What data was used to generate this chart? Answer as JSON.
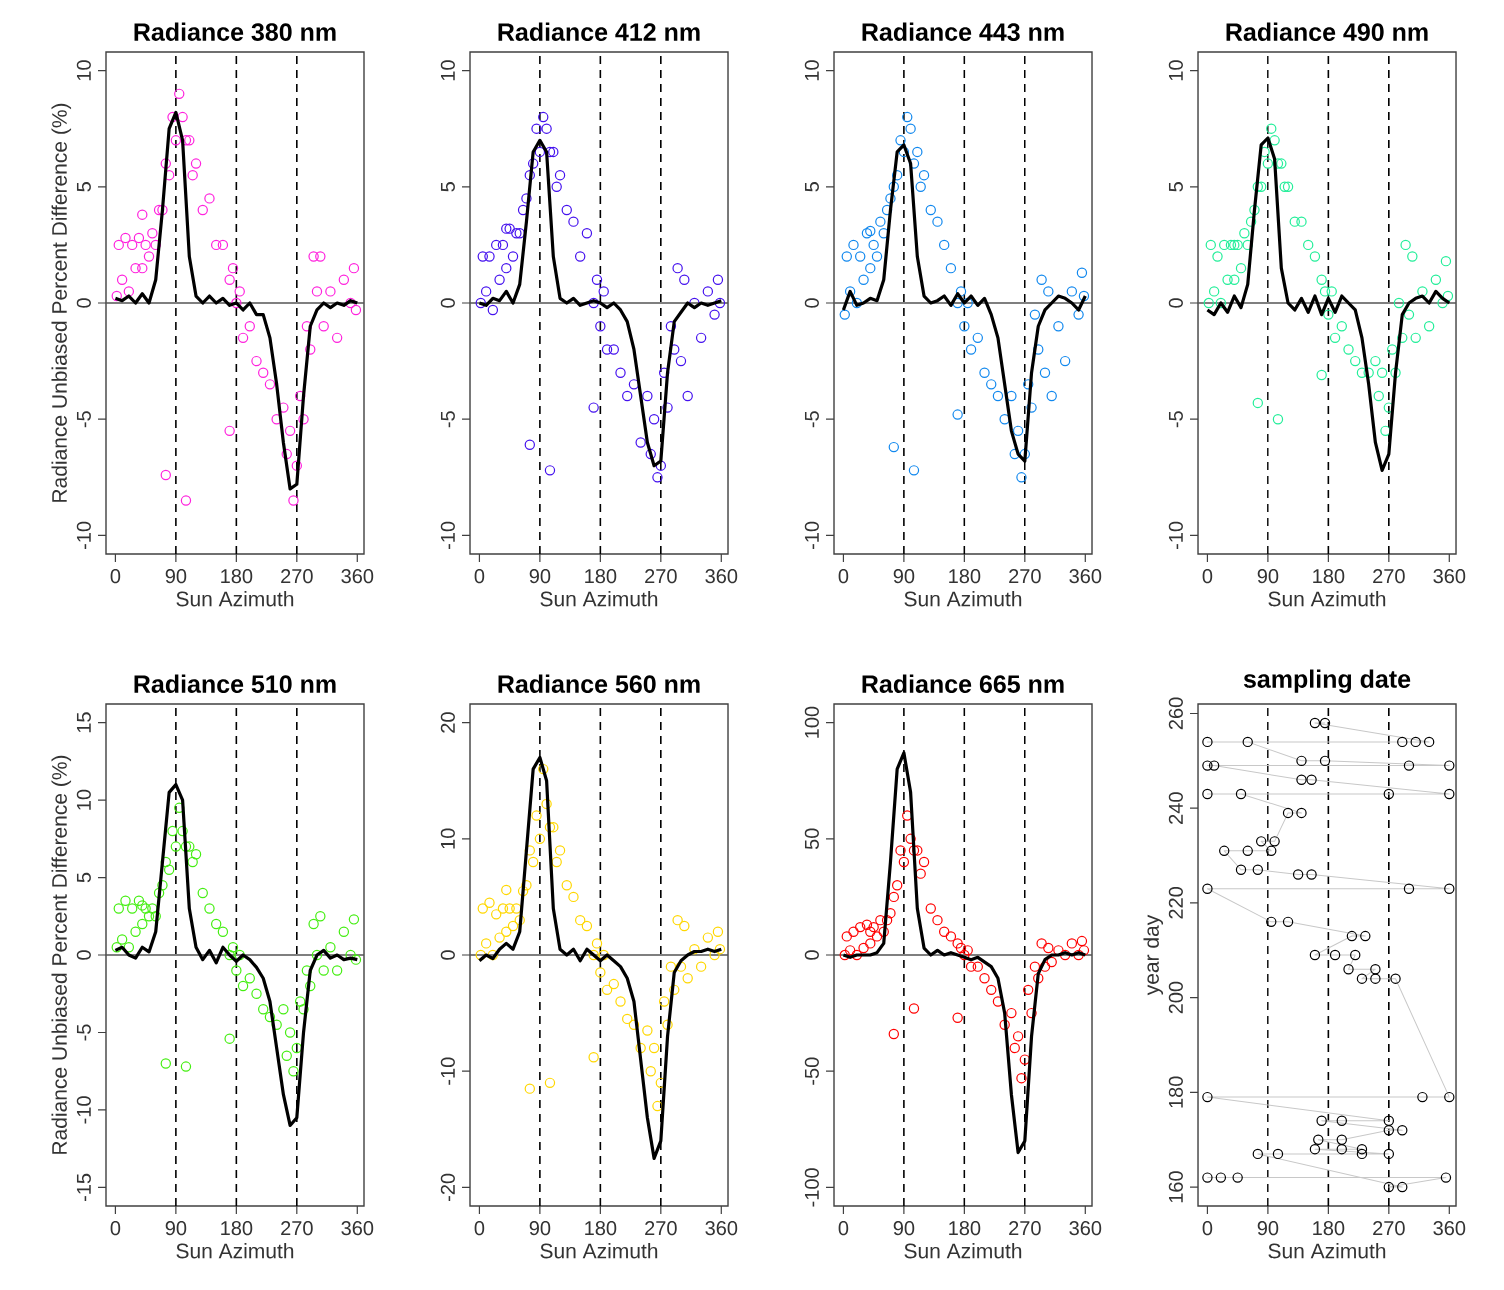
{
  "chart_data": [
    {
      "type": "scatter",
      "title": "Radiance 380 nm",
      "xlabel": "Sun Azimuth",
      "ylabel": "Radiance Unbiased Percent Difference (%)",
      "xlim": [
        -14,
        370
      ],
      "ylim": [
        -10.8,
        10.8
      ],
      "xticks": [
        0,
        90,
        180,
        270,
        360
      ],
      "yticks": [
        -10,
        -5,
        0,
        5,
        10
      ],
      "ref_lines": [
        {
          "axis": "x",
          "value": 90,
          "line_style": "dashed",
          "color": "#000000"
        },
        {
          "axis": "x",
          "value": 180,
          "line_style": "dashed",
          "color": "#000000"
        },
        {
          "axis": "x",
          "value": 270,
          "line_style": "dashed",
          "color": "#000000"
        },
        {
          "axis": "y",
          "value": 0,
          "line_style": "solid",
          "color": "#555555"
        }
      ],
      "series": [
        {
          "type": "scatter",
          "marker": "circle",
          "color": "#ff22dd",
          "x": [
            2,
            5,
            10,
            15,
            20,
            25,
            30,
            35,
            40,
            45,
            50,
            55,
            60,
            65,
            70,
            75,
            80,
            85,
            90,
            95,
            100,
            105,
            110,
            115,
            120,
            130,
            140,
            150,
            160,
            170,
            175,
            180,
            185,
            190,
            200,
            210,
            220,
            230,
            240,
            250,
            255,
            260,
            265,
            270,
            275,
            280,
            285,
            290,
            295,
            300,
            305,
            310,
            320,
            330,
            340,
            350,
            355,
            358,
            75,
            105,
            170,
            40
          ],
          "values": [
            0.3,
            2.5,
            1,
            2.8,
            0.5,
            2.5,
            1.5,
            2.8,
            1.5,
            2.5,
            2,
            3,
            2.5,
            4,
            4,
            6,
            5.5,
            8,
            7,
            9,
            8,
            7,
            7,
            5.5,
            6,
            4,
            4.5,
            2.5,
            2.5,
            1,
            1.5,
            0,
            0.5,
            -1.5,
            -1,
            -2.5,
            -3,
            -3.5,
            -5,
            -4.5,
            -6.5,
            -5.5,
            -8.5,
            -7,
            -4,
            -5,
            -1,
            -2,
            2,
            0.5,
            2,
            -1,
            0.5,
            -1.5,
            1,
            0,
            1.5,
            -0.3,
            -7.4,
            -8.5,
            -5.5,
            3.8
          ]
        },
        {
          "type": "line",
          "marker": "none",
          "color": "#000000",
          "x": [
            0,
            10,
            20,
            30,
            40,
            50,
            60,
            70,
            80,
            90,
            100,
            110,
            120,
            130,
            140,
            150,
            160,
            170,
            180,
            190,
            200,
            210,
            220,
            230,
            240,
            250,
            260,
            270,
            280,
            290,
            300,
            310,
            320,
            330,
            340,
            350,
            360
          ],
          "values": [
            0.2,
            0.1,
            0.3,
            0,
            0.4,
            0,
            1,
            4,
            7.5,
            8.2,
            7,
            2,
            0.3,
            0,
            0.3,
            0,
            0.2,
            -0.1,
            0,
            -0.3,
            0,
            -0.5,
            -0.5,
            -1.5,
            -3.5,
            -6,
            -8,
            -7.8,
            -4,
            -1,
            -0.3,
            0,
            -0.2,
            0,
            -0.1,
            0.1,
            0
          ]
        }
      ]
    },
    {
      "type": "scatter",
      "title": "Radiance 412 nm",
      "xlabel": "Sun Azimuth",
      "xlim": [
        -14,
        370
      ],
      "ylim": [
        -10.8,
        10.8
      ],
      "xticks": [
        0,
        90,
        180,
        270,
        360
      ],
      "yticks": [
        -10,
        -5,
        0,
        5,
        10
      ],
      "ref_lines": [
        {
          "axis": "x",
          "value": 90,
          "line_style": "dashed",
          "color": "#000000"
        },
        {
          "axis": "x",
          "value": 180,
          "line_style": "dashed",
          "color": "#000000"
        },
        {
          "axis": "x",
          "value": 270,
          "line_style": "dashed",
          "color": "#000000"
        },
        {
          "axis": "y",
          "value": 0,
          "line_style": "solid",
          "color": "#555555"
        }
      ],
      "series": [
        {
          "type": "scatter",
          "marker": "circle",
          "color": "#4411ee",
          "x": [
            2,
            5,
            10,
            15,
            20,
            25,
            30,
            35,
            40,
            45,
            50,
            55,
            60,
            65,
            70,
            75,
            80,
            85,
            90,
            95,
            100,
            105,
            110,
            115,
            120,
            130,
            140,
            150,
            160,
            170,
            175,
            180,
            185,
            190,
            200,
            210,
            220,
            230,
            240,
            250,
            255,
            260,
            265,
            270,
            275,
            280,
            285,
            290,
            295,
            300,
            305,
            310,
            320,
            330,
            340,
            350,
            355,
            358,
            75,
            105,
            170,
            40
          ],
          "values": [
            0,
            2,
            0.5,
            2,
            -0.3,
            2.5,
            1,
            2.5,
            1.5,
            3.2,
            2,
            3,
            3,
            4,
            4.5,
            5.5,
            6,
            7.5,
            6.5,
            8,
            7.5,
            6.5,
            6.5,
            5,
            5.5,
            4,
            3.5,
            2,
            3,
            0,
            1,
            -1,
            0.5,
            -2,
            -2,
            -3,
            -4,
            -3.5,
            -6,
            -4,
            -6.5,
            -5,
            -7.5,
            -7,
            -3,
            -4.5,
            -1,
            -2,
            1.5,
            -2.5,
            1,
            -4,
            0,
            -1.5,
            0.5,
            -0.5,
            1,
            0,
            -6.1,
            -7.2,
            -4.5,
            3.2
          ]
        },
        {
          "type": "line",
          "marker": "none",
          "color": "#000000",
          "x": [
            0,
            10,
            20,
            30,
            40,
            50,
            60,
            70,
            80,
            90,
            100,
            110,
            120,
            130,
            140,
            150,
            160,
            170,
            180,
            190,
            200,
            210,
            220,
            230,
            240,
            250,
            260,
            270,
            280,
            290,
            300,
            310,
            320,
            330,
            340,
            350,
            360
          ],
          "values": [
            0,
            -0.1,
            0.2,
            0.1,
            0.5,
            0,
            0.8,
            3.5,
            6.5,
            7,
            6.5,
            2,
            0.2,
            0,
            0.2,
            -0.1,
            0,
            0.1,
            0,
            -0.2,
            0,
            -0.3,
            -0.8,
            -2,
            -4,
            -6,
            -7,
            -6.8,
            -3,
            -0.8,
            -0.4,
            0,
            -0.2,
            0,
            -0.1,
            0,
            0.1
          ]
        }
      ]
    },
    {
      "type": "scatter",
      "title": "Radiance 443 nm",
      "xlabel": "Sun Azimuth",
      "xlim": [
        -14,
        370
      ],
      "ylim": [
        -10.8,
        10.8
      ],
      "xticks": [
        0,
        90,
        180,
        270,
        360
      ],
      "yticks": [
        -10,
        -5,
        0,
        5,
        10
      ],
      "ref_lines": [
        {
          "axis": "x",
          "value": 90,
          "line_style": "dashed",
          "color": "#000000"
        },
        {
          "axis": "x",
          "value": 180,
          "line_style": "dashed",
          "color": "#000000"
        },
        {
          "axis": "x",
          "value": 270,
          "line_style": "dashed",
          "color": "#000000"
        },
        {
          "axis": "y",
          "value": 0,
          "line_style": "solid",
          "color": "#555555"
        }
      ],
      "series": [
        {
          "type": "scatter",
          "marker": "circle",
          "color": "#1188ee",
          "x": [
            2,
            5,
            10,
            15,
            20,
            25,
            30,
            35,
            40,
            45,
            50,
            55,
            60,
            65,
            70,
            75,
            80,
            85,
            90,
            95,
            100,
            105,
            110,
            115,
            120,
            130,
            140,
            150,
            160,
            170,
            175,
            180,
            185,
            190,
            200,
            210,
            220,
            230,
            240,
            250,
            255,
            260,
            265,
            270,
            275,
            280,
            285,
            290,
            295,
            300,
            305,
            310,
            320,
            330,
            340,
            350,
            355,
            358,
            75,
            105,
            170,
            40
          ],
          "values": [
            -0.5,
            2,
            0.5,
            2.5,
            0,
            2,
            1,
            3,
            1.5,
            2.5,
            2,
            3.5,
            3,
            4,
            4.5,
            5,
            5.5,
            7,
            6.5,
            8,
            7.5,
            6,
            6.5,
            5,
            5.5,
            4,
            3.5,
            2.5,
            1.5,
            0,
            0.5,
            -1,
            0,
            -2,
            -1.5,
            -3,
            -3.5,
            -4,
            -5,
            -4,
            -6.5,
            -5.5,
            -7.5,
            -6.5,
            -3.5,
            -4.5,
            -0.5,
            -2,
            1,
            -3,
            0.5,
            -4,
            -1,
            -2.5,
            0.5,
            -0.5,
            1.3,
            0.3,
            -6.2,
            -7.2,
            -4.8,
            3.1
          ]
        },
        {
          "type": "line",
          "marker": "none",
          "color": "#000000",
          "x": [
            0,
            10,
            20,
            30,
            40,
            50,
            60,
            70,
            80,
            90,
            100,
            110,
            120,
            130,
            140,
            150,
            160,
            170,
            180,
            190,
            200,
            210,
            220,
            230,
            240,
            250,
            260,
            270,
            280,
            290,
            300,
            310,
            320,
            330,
            340,
            350,
            360
          ],
          "values": [
            -0.3,
            0.5,
            -0.1,
            0,
            0.2,
            0.1,
            1,
            4,
            6.5,
            6.8,
            6,
            2,
            0.3,
            0,
            0.1,
            0.3,
            -0.1,
            0.4,
            0,
            0.3,
            -0.1,
            0.2,
            -0.5,
            -1.5,
            -3.5,
            -5.5,
            -6.5,
            -6.8,
            -3,
            -1,
            -0.3,
            0,
            0.3,
            0.2,
            0,
            -0.3,
            0.3
          ]
        }
      ]
    },
    {
      "type": "scatter",
      "title": "Radiance 490 nm",
      "xlabel": "Sun Azimuth",
      "xlim": [
        -14,
        370
      ],
      "ylim": [
        -10.8,
        10.8
      ],
      "xticks": [
        0,
        90,
        180,
        270,
        360
      ],
      "yticks": [
        -10,
        -5,
        0,
        5,
        10
      ],
      "ref_lines": [
        {
          "axis": "x",
          "value": 90,
          "line_style": "dashed",
          "color": "#000000"
        },
        {
          "axis": "x",
          "value": 180,
          "line_style": "dashed",
          "color": "#000000"
        },
        {
          "axis": "x",
          "value": 270,
          "line_style": "dashed",
          "color": "#000000"
        },
        {
          "axis": "y",
          "value": 0,
          "line_style": "solid",
          "color": "#555555"
        }
      ],
      "series": [
        {
          "type": "scatter",
          "marker": "circle",
          "color": "#22ee99",
          "x": [
            2,
            5,
            10,
            15,
            20,
            25,
            30,
            35,
            40,
            45,
            50,
            55,
            60,
            65,
            70,
            75,
            80,
            85,
            90,
            95,
            100,
            105,
            110,
            115,
            120,
            130,
            140,
            150,
            160,
            170,
            175,
            180,
            185,
            190,
            200,
            210,
            220,
            230,
            240,
            250,
            255,
            260,
            265,
            270,
            275,
            280,
            285,
            290,
            295,
            300,
            305,
            310,
            320,
            330,
            340,
            350,
            355,
            358,
            75,
            105,
            170,
            40
          ],
          "values": [
            0,
            2.5,
            0.5,
            2,
            0,
            2.5,
            1,
            2.5,
            1,
            2.5,
            1.5,
            3,
            2.5,
            3.5,
            4,
            5,
            5,
            6.5,
            6,
            7.5,
            7,
            6,
            6,
            5,
            5,
            3.5,
            3.5,
            2.5,
            2,
            1,
            0.5,
            -0.5,
            0.5,
            -1.5,
            -1,
            -2,
            -2.5,
            -3,
            -3,
            -2.5,
            -4,
            -3,
            -5.5,
            -4.5,
            -2,
            -3,
            0,
            -1.5,
            2.5,
            -0.5,
            2,
            -1.5,
            0.5,
            -1,
            1,
            0,
            1.8,
            0.3,
            -4.3,
            -5,
            -3.1,
            2.5
          ]
        },
        {
          "type": "line",
          "marker": "none",
          "color": "#000000",
          "x": [
            0,
            10,
            20,
            30,
            40,
            50,
            60,
            70,
            80,
            90,
            100,
            110,
            120,
            130,
            140,
            150,
            160,
            170,
            180,
            190,
            200,
            210,
            220,
            230,
            240,
            250,
            260,
            270,
            280,
            290,
            300,
            310,
            320,
            330,
            340,
            350,
            360
          ],
          "values": [
            -0.3,
            -0.5,
            0,
            -0.4,
            0.3,
            -0.2,
            0.8,
            4,
            6.8,
            7.1,
            6.2,
            1.5,
            0,
            -0.3,
            0.2,
            -0.4,
            0.3,
            -0.5,
            0.2,
            -0.4,
            0.3,
            0,
            -0.3,
            -1.5,
            -3.5,
            -6,
            -7.2,
            -6.5,
            -3,
            -0.5,
            0,
            0.2,
            0.3,
            0,
            0.5,
            0.2,
            0
          ]
        }
      ]
    },
    {
      "type": "scatter",
      "title": "Radiance 510 nm",
      "xlabel": "Sun Azimuth",
      "ylabel": "Radiance Unbiased Percent Difference (%)",
      "xlim": [
        -14,
        370
      ],
      "ylim": [
        -16.2,
        16.2
      ],
      "xticks": [
        0,
        90,
        180,
        270,
        360
      ],
      "yticks": [
        -15,
        -10,
        -5,
        0,
        5,
        10,
        15
      ],
      "ref_lines": [
        {
          "axis": "x",
          "value": 90,
          "line_style": "dashed",
          "color": "#000000"
        },
        {
          "axis": "x",
          "value": 180,
          "line_style": "dashed",
          "color": "#000000"
        },
        {
          "axis": "x",
          "value": 270,
          "line_style": "dashed",
          "color": "#000000"
        },
        {
          "axis": "y",
          "value": 0,
          "line_style": "solid",
          "color": "#555555"
        }
      ],
      "series": [
        {
          "type": "scatter",
          "marker": "circle",
          "color": "#44ee11",
          "x": [
            2,
            5,
            10,
            15,
            20,
            25,
            30,
            35,
            40,
            45,
            50,
            55,
            60,
            65,
            70,
            75,
            80,
            85,
            90,
            95,
            100,
            105,
            110,
            115,
            120,
            130,
            140,
            150,
            160,
            170,
            175,
            180,
            185,
            190,
            200,
            210,
            220,
            230,
            240,
            250,
            255,
            260,
            265,
            270,
            275,
            280,
            285,
            290,
            295,
            300,
            305,
            310,
            320,
            330,
            340,
            350,
            355,
            358,
            75,
            105,
            170,
            40
          ],
          "values": [
            0.5,
            3,
            1,
            3.5,
            0.5,
            3,
            1.5,
            3.5,
            2,
            3,
            2.5,
            3,
            2.5,
            4,
            4.5,
            6,
            5.5,
            8,
            7,
            9.5,
            8,
            7,
            7,
            6,
            6.5,
            4,
            3,
            2,
            1.5,
            0,
            0.5,
            -1,
            0,
            -2,
            -1.5,
            -2.5,
            -3.5,
            -4,
            -4.5,
            -3.5,
            -6.5,
            -5,
            -7.5,
            -6,
            -3,
            -3.5,
            -1,
            -2,
            2,
            0,
            2.5,
            -1,
            0.5,
            -1,
            1.5,
            0,
            2.3,
            -0.3,
            -7,
            -7.2,
            -5.4,
            3.2
          ]
        },
        {
          "type": "line",
          "marker": "none",
          "color": "#000000",
          "x": [
            0,
            10,
            20,
            30,
            40,
            50,
            60,
            70,
            80,
            90,
            100,
            110,
            120,
            130,
            140,
            150,
            160,
            170,
            180,
            190,
            200,
            210,
            220,
            230,
            240,
            250,
            260,
            270,
            280,
            290,
            300,
            310,
            320,
            330,
            340,
            350,
            360
          ],
          "values": [
            0.3,
            0.5,
            0,
            -0.2,
            0.5,
            0.2,
            1.5,
            6,
            10.5,
            11,
            10,
            3,
            0.5,
            -0.3,
            0.3,
            -0.5,
            0.5,
            0,
            -0.4,
            0,
            -0.3,
            -0.8,
            -1.5,
            -3,
            -6,
            -9,
            -11,
            -10.5,
            -5,
            -1,
            0,
            0.3,
            -0.2,
            0,
            -0.3,
            -0.2,
            -0.3
          ]
        }
      ]
    },
    {
      "type": "scatter",
      "title": "Radiance 560 nm",
      "xlabel": "Sun Azimuth",
      "xlim": [
        -14,
        370
      ],
      "ylim": [
        -21.6,
        21.6
      ],
      "xticks": [
        0,
        90,
        180,
        270,
        360
      ],
      "yticks": [
        -20,
        -10,
        0,
        10,
        20
      ],
      "ref_lines": [
        {
          "axis": "x",
          "value": 90,
          "line_style": "dashed",
          "color": "#000000"
        },
        {
          "axis": "x",
          "value": 180,
          "line_style": "dashed",
          "color": "#000000"
        },
        {
          "axis": "x",
          "value": 270,
          "line_style": "dashed",
          "color": "#000000"
        },
        {
          "axis": "y",
          "value": 0,
          "line_style": "solid",
          "color": "#555555"
        }
      ],
      "series": [
        {
          "type": "scatter",
          "marker": "circle",
          "color": "#ffd700",
          "x": [
            2,
            5,
            10,
            15,
            20,
            25,
            30,
            35,
            40,
            45,
            50,
            55,
            60,
            65,
            70,
            75,
            80,
            85,
            90,
            95,
            100,
            105,
            110,
            115,
            120,
            130,
            140,
            150,
            160,
            170,
            175,
            180,
            185,
            190,
            200,
            210,
            220,
            230,
            240,
            250,
            255,
            260,
            265,
            270,
            275,
            280,
            285,
            290,
            295,
            300,
            305,
            310,
            320,
            330,
            340,
            350,
            355,
            358,
            75,
            105,
            170,
            40
          ],
          "values": [
            0,
            4,
            1,
            4.5,
            0,
            3.5,
            1.5,
            4,
            2,
            4,
            2.5,
            4,
            3,
            5.5,
            6,
            9,
            8,
            12,
            10,
            16,
            13,
            11,
            11,
            8,
            9,
            6,
            5,
            3,
            2.5,
            0,
            1,
            -1.5,
            0,
            -3,
            -2.5,
            -4,
            -5.5,
            -6,
            -8,
            -6.5,
            -10,
            -8,
            -13,
            -11,
            -4,
            -6,
            -1,
            -3,
            3,
            -1,
            2.5,
            -2,
            0.5,
            -1,
            1.5,
            0,
            2,
            0.5,
            -11.5,
            -11,
            -8.8,
            5.6
          ]
        },
        {
          "type": "line",
          "marker": "none",
          "color": "#000000",
          "x": [
            0,
            10,
            20,
            30,
            40,
            50,
            60,
            70,
            80,
            90,
            100,
            110,
            120,
            130,
            140,
            150,
            160,
            170,
            180,
            190,
            200,
            210,
            220,
            230,
            240,
            250,
            260,
            270,
            280,
            290,
            300,
            310,
            320,
            330,
            340,
            350,
            360
          ],
          "values": [
            -0.5,
            0,
            -0.3,
            0.5,
            1,
            0.5,
            2,
            9,
            16,
            17,
            15,
            4,
            0.5,
            0,
            0.5,
            -0.5,
            0.5,
            0,
            -0.5,
            0,
            -0.5,
            -1,
            -2,
            -4,
            -9,
            -14,
            -17.5,
            -16,
            -7,
            -1.5,
            -0.5,
            0,
            0.3,
            0.3,
            0.5,
            0.3,
            0.5
          ]
        }
      ]
    },
    {
      "type": "scatter",
      "title": "Radiance 665 nm",
      "xlabel": "Sun Azimuth",
      "xlim": [
        -14,
        370
      ],
      "ylim": [
        -108,
        108
      ],
      "xticks": [
        0,
        90,
        180,
        270,
        360
      ],
      "yticks": [
        -100,
        -50,
        0,
        50,
        100
      ],
      "ref_lines": [
        {
          "axis": "x",
          "value": 90,
          "line_style": "dashed",
          "color": "#000000"
        },
        {
          "axis": "x",
          "value": 180,
          "line_style": "dashed",
          "color": "#000000"
        },
        {
          "axis": "x",
          "value": 270,
          "line_style": "dashed",
          "color": "#000000"
        },
        {
          "axis": "y",
          "value": 0,
          "line_style": "solid",
          "color": "#555555"
        }
      ],
      "series": [
        {
          "type": "scatter",
          "marker": "circle",
          "color": "#ff0000",
          "x": [
            2,
            5,
            10,
            15,
            20,
            25,
            30,
            35,
            40,
            45,
            50,
            55,
            60,
            65,
            70,
            75,
            80,
            85,
            90,
            95,
            100,
            105,
            110,
            115,
            120,
            130,
            140,
            150,
            160,
            170,
            175,
            180,
            185,
            190,
            200,
            210,
            220,
            230,
            240,
            250,
            255,
            260,
            265,
            270,
            275,
            280,
            285,
            290,
            295,
            300,
            305,
            310,
            320,
            330,
            340,
            350,
            355,
            358,
            75,
            105,
            170,
            40
          ],
          "values": [
            0,
            8,
            2,
            10,
            0,
            12,
            3,
            13,
            5,
            12,
            8,
            15,
            10,
            15,
            18,
            25,
            30,
            45,
            40,
            60,
            50,
            45,
            45,
            35,
            40,
            20,
            15,
            10,
            8,
            5,
            3,
            0,
            2,
            -5,
            -5,
            -10,
            -15,
            -20,
            -30,
            -25,
            -40,
            -35,
            -53,
            -45,
            -15,
            -25,
            -5,
            -10,
            5,
            -5,
            3,
            -3,
            2,
            0,
            5,
            0,
            6,
            2,
            -34,
            -23,
            -27,
            10
          ]
        },
        {
          "type": "line",
          "marker": "none",
          "color": "#000000",
          "x": [
            0,
            10,
            20,
            30,
            40,
            50,
            60,
            70,
            80,
            90,
            100,
            110,
            120,
            130,
            140,
            150,
            160,
            170,
            180,
            190,
            200,
            210,
            220,
            230,
            240,
            250,
            260,
            270,
            280,
            290,
            300,
            310,
            320,
            330,
            340,
            350,
            360
          ],
          "values": [
            0,
            -1,
            0,
            0,
            0,
            1,
            5,
            40,
            80,
            87,
            70,
            20,
            3,
            0,
            2,
            0,
            1,
            0,
            -1,
            -2,
            -1,
            -3,
            -5,
            -10,
            -25,
            -60,
            -85,
            -80,
            -35,
            -8,
            -2,
            0,
            0,
            1,
            0,
            1,
            0
          ]
        }
      ]
    },
    {
      "type": "scatter",
      "title": "sampling date",
      "xlabel": "Sun Azimuth",
      "ylabel": "year day",
      "xlim": [
        -14,
        370
      ],
      "ylim": [
        156,
        262
      ],
      "xticks": [
        0,
        90,
        180,
        270,
        360
      ],
      "yticks": [
        160,
        180,
        200,
        220,
        240,
        260
      ],
      "ref_lines": [
        {
          "axis": "x",
          "value": 90,
          "line_style": "dashed",
          "color": "#000000"
        },
        {
          "axis": "x",
          "value": 180,
          "line_style": "dashed",
          "color": "#000000"
        },
        {
          "axis": "x",
          "value": 270,
          "line_style": "dashed",
          "color": "#000000"
        }
      ],
      "series": [
        {
          "type": "line",
          "marker": "none",
          "color": "#c8c8c8",
          "x": [
            0,
            20,
            45,
            355,
            270,
            290,
            75,
            105,
            230,
            270,
            160,
            200,
            230,
            165,
            200,
            270,
            290,
            170,
            200,
            270,
            0,
            320,
            360,
            280,
            250,
            230,
            250,
            210,
            220,
            190,
            160,
            215,
            235,
            120,
            95,
            0,
            300,
            360,
            155,
            135,
            75,
            50,
            25,
            60,
            95,
            80,
            100,
            120,
            140,
            50,
            0,
            270,
            360,
            155,
            140,
            10,
            0,
            300,
            360,
            175,
            140,
            60,
            0,
            290,
            310,
            330,
            160,
            175
          ],
          "values": [
            162,
            162,
            162,
            162,
            160,
            160,
            167,
            167,
            167,
            167,
            168,
            168,
            168,
            170,
            170,
            172,
            172,
            174,
            174,
            174,
            179,
            179,
            179,
            204,
            204,
            204,
            206,
            206,
            209,
            209,
            209,
            213,
            213,
            216,
            216,
            223,
            223,
            223,
            226,
            226,
            227,
            227,
            231,
            231,
            231,
            233,
            233,
            239,
            239,
            243,
            243,
            243,
            243,
            246,
            246,
            249,
            249,
            249,
            249,
            250,
            250,
            254,
            254,
            254,
            254,
            254,
            258,
            258
          ]
        },
        {
          "type": "scatter",
          "marker": "circle",
          "color": "#000000",
          "x": [
            0,
            20,
            45,
            355,
            270,
            290,
            75,
            105,
            230,
            270,
            160,
            200,
            230,
            165,
            200,
            270,
            290,
            170,
            200,
            270,
            0,
            320,
            360,
            280,
            250,
            230,
            250,
            210,
            220,
            190,
            160,
            215,
            235,
            120,
            95,
            0,
            300,
            360,
            155,
            135,
            75,
            50,
            25,
            60,
            95,
            80,
            100,
            120,
            140,
            50,
            0,
            270,
            360,
            155,
            140,
            10,
            0,
            300,
            360,
            175,
            140,
            60,
            0,
            290,
            310,
            330,
            160,
            175
          ],
          "values": [
            162,
            162,
            162,
            162,
            160,
            160,
            167,
            167,
            167,
            167,
            168,
            168,
            168,
            170,
            170,
            172,
            172,
            174,
            174,
            174,
            179,
            179,
            179,
            204,
            204,
            204,
            206,
            206,
            209,
            209,
            209,
            213,
            213,
            216,
            216,
            223,
            223,
            223,
            226,
            226,
            227,
            227,
            231,
            231,
            231,
            233,
            233,
            239,
            239,
            243,
            243,
            243,
            243,
            246,
            246,
            249,
            249,
            249,
            249,
            250,
            250,
            254,
            254,
            254,
            254,
            254,
            258,
            258
          ]
        }
      ]
    }
  ]
}
